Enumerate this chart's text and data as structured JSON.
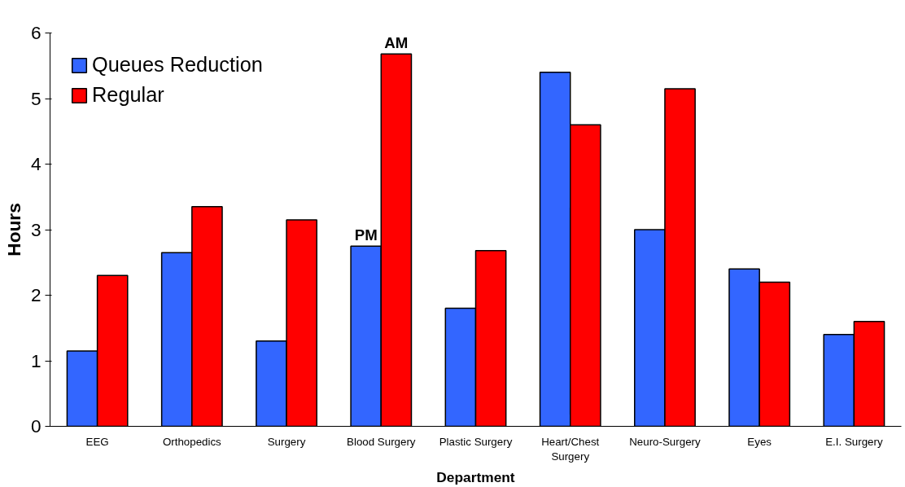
{
  "chart_data": {
    "type": "bar",
    "xlabel": "Department",
    "ylabel": "Hours",
    "categories": [
      "EEG",
      "Orthopedics",
      "Surgery",
      "Blood Surgery",
      "Plastic Surgery",
      "Heart/Chest Surgery",
      "Neuro-Surgery",
      "Eyes",
      "E.I. Surgery"
    ],
    "series": [
      {
        "name": "Queues Reduction",
        "color": "#3366ff",
        "values": [
          1.15,
          2.65,
          1.3,
          2.75,
          1.8,
          5.4,
          3.0,
          2.4,
          1.4
        ]
      },
      {
        "name": "Regular",
        "color": "#ff0000",
        "values": [
          2.3,
          3.35,
          3.15,
          5.68,
          2.68,
          4.6,
          5.15,
          2.2,
          1.6
        ]
      }
    ],
    "annotations": [
      {
        "text": "PM",
        "x": "Blood Surgery",
        "y": 2.75
      },
      {
        "text": "AM",
        "x": "Blood Surgery",
        "y": 5.68
      }
    ],
    "ylim": [
      0,
      6
    ],
    "yticks": [
      0,
      1,
      2,
      3,
      4,
      5,
      6
    ],
    "grid": false,
    "legend": "top left"
  }
}
